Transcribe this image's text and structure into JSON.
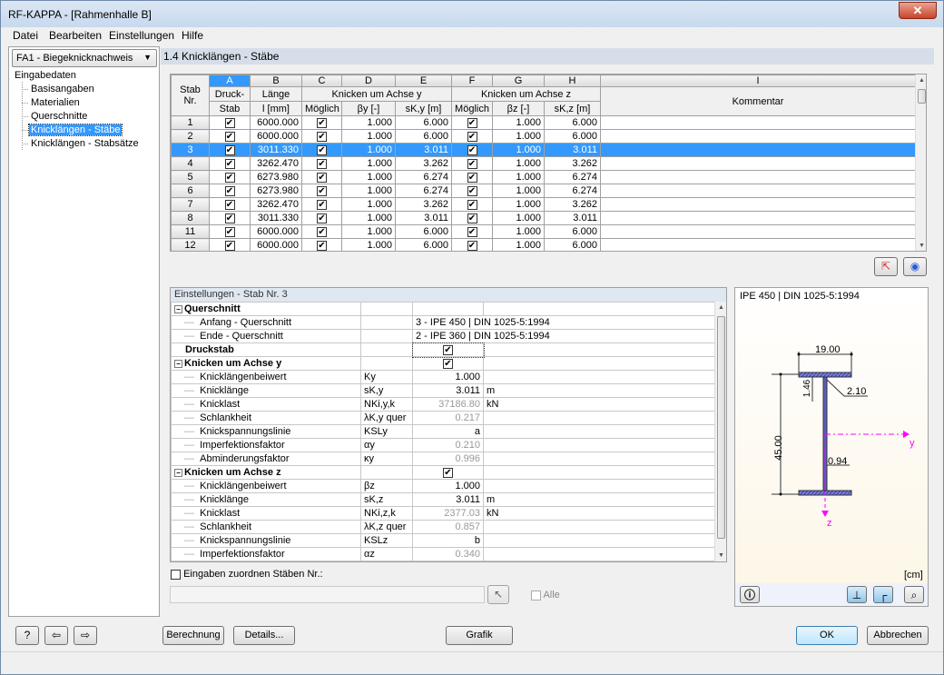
{
  "window": {
    "title": "RF-KAPPA - [Rahmenhalle B]",
    "close": "✕"
  },
  "menu": [
    "Datei",
    "Bearbeiten",
    "Einstellungen",
    "Hilfe"
  ],
  "left": {
    "case": "FA1 - Biegeknicknachweis",
    "root": "Eingabedaten",
    "items": [
      "Basisangaben",
      "Materialien",
      "Querschnitte",
      "Knicklängen - Stäbe",
      "Knicklängen - Stabsätze"
    ],
    "selected": 3
  },
  "section_title": "1.4 Knicklängen - Stäbe",
  "grid": {
    "letters": [
      "A",
      "B",
      "C",
      "D",
      "E",
      "F",
      "G",
      "H",
      "I"
    ],
    "headers": {
      "stab": "Stab",
      "nr": "Nr.",
      "druck1": "Druck-",
      "druck2": "Stab",
      "laenge1": "Länge",
      "laenge2": "l [mm]",
      "achse_y": "Knicken um Achse y",
      "achse_z": "Knicken um Achse z",
      "moeglich": "Möglich",
      "beta_y": "βy [-]",
      "sk_y": "sK,y [m]",
      "beta_z": "βz [-]",
      "sk_z": "sK,z [m]",
      "kommentar": "Kommentar"
    },
    "rows": [
      {
        "nr": "1",
        "druck": true,
        "l": "6000.000",
        "my": true,
        "by": "1.000",
        "sky": "6.000",
        "mz": true,
        "bz": "1.000",
        "skz": "6.000"
      },
      {
        "nr": "2",
        "druck": true,
        "l": "6000.000",
        "my": true,
        "by": "1.000",
        "sky": "6.000",
        "mz": true,
        "bz": "1.000",
        "skz": "6.000"
      },
      {
        "nr": "3",
        "druck": true,
        "l": "3011.330",
        "my": true,
        "by": "1.000",
        "sky": "3.011",
        "mz": true,
        "bz": "1.000",
        "skz": "3.011"
      },
      {
        "nr": "4",
        "druck": true,
        "l": "3262.470",
        "my": true,
        "by": "1.000",
        "sky": "3.262",
        "mz": true,
        "bz": "1.000",
        "skz": "3.262"
      },
      {
        "nr": "5",
        "druck": true,
        "l": "6273.980",
        "my": true,
        "by": "1.000",
        "sky": "6.274",
        "mz": true,
        "bz": "1.000",
        "skz": "6.274"
      },
      {
        "nr": "6",
        "druck": true,
        "l": "6273.980",
        "my": true,
        "by": "1.000",
        "sky": "6.274",
        "mz": true,
        "bz": "1.000",
        "skz": "6.274"
      },
      {
        "nr": "7",
        "druck": true,
        "l": "3262.470",
        "my": true,
        "by": "1.000",
        "sky": "3.262",
        "mz": true,
        "bz": "1.000",
        "skz": "3.262"
      },
      {
        "nr": "8",
        "druck": true,
        "l": "3011.330",
        "my": true,
        "by": "1.000",
        "sky": "3.011",
        "mz": true,
        "bz": "1.000",
        "skz": "3.011"
      },
      {
        "nr": "11",
        "druck": true,
        "l": "6000.000",
        "my": true,
        "by": "1.000",
        "sky": "6.000",
        "mz": true,
        "bz": "1.000",
        "skz": "6.000"
      },
      {
        "nr": "12",
        "druck": true,
        "l": "6000.000",
        "my": true,
        "by": "1.000",
        "sky": "6.000",
        "mz": true,
        "bz": "1.000",
        "skz": "6.000"
      }
    ],
    "selected_row": "3"
  },
  "settings": {
    "title": "Einstellungen  -  Stab Nr.  3",
    "rows": [
      {
        "type": "group",
        "name": "Querschnitt"
      },
      {
        "type": "item",
        "name": "Anfang - Querschnitt",
        "sym": "",
        "val": "3 - IPE 450 | DIN 1025-5:1994",
        "unit": "",
        "left": true
      },
      {
        "type": "item",
        "name": "Ende - Querschnitt",
        "sym": "",
        "val": "2 - IPE 360 | DIN 1025-5:1994",
        "unit": "",
        "left": true
      },
      {
        "type": "bold",
        "name": "Druckstab",
        "check": true
      },
      {
        "type": "group",
        "name": "Knicken um Achse y",
        "check": true
      },
      {
        "type": "item",
        "name": "Knicklängenbeiwert",
        "sym": "Ky",
        "val": "1.000",
        "unit": ""
      },
      {
        "type": "item",
        "name": "Knicklänge",
        "sym": "sK,y",
        "val": "3.011",
        "unit": "m"
      },
      {
        "type": "item",
        "name": "Knicklast",
        "sym": "NKi,y,k",
        "val": "37186.80",
        "unit": "kN",
        "gray": true
      },
      {
        "type": "item",
        "name": "Schlankheit",
        "sym": "λK,y quer",
        "val": "0.217",
        "unit": "",
        "gray": true
      },
      {
        "type": "item",
        "name": "Knickspannungslinie",
        "sym": "KSLy",
        "val": "a",
        "unit": ""
      },
      {
        "type": "item",
        "name": "Imperfektionsfaktor",
        "sym": "αy",
        "val": "0.210",
        "unit": "",
        "gray": true
      },
      {
        "type": "item",
        "name": "Abminderungsfaktor",
        "sym": "κy",
        "val": "0.996",
        "unit": "",
        "gray": true
      },
      {
        "type": "group",
        "name": "Knicken um Achse z",
        "check": true
      },
      {
        "type": "item",
        "name": "Knicklängenbeiwert",
        "sym": "βz",
        "val": "1.000",
        "unit": ""
      },
      {
        "type": "item",
        "name": "Knicklänge",
        "sym": "sK,z",
        "val": "3.011",
        "unit": "m"
      },
      {
        "type": "item",
        "name": "Knicklast",
        "sym": "NKi,z,k",
        "val": "2377.03",
        "unit": "kN",
        "gray": true
      },
      {
        "type": "item",
        "name": "Schlankheit",
        "sym": "λK,z quer",
        "val": "0.857",
        "unit": "",
        "gray": true
      },
      {
        "type": "item",
        "name": "Knickspannungslinie",
        "sym": "KSLz",
        "val": "b",
        "unit": ""
      },
      {
        "type": "item",
        "name": "Imperfektionsfaktor",
        "sym": "αz",
        "val": "0.340",
        "unit": "",
        "gray": true
      }
    ],
    "assign_label": "Eingaben zuordnen Stäben Nr.:",
    "assign_value": "",
    "alle": "Alle"
  },
  "graphic": {
    "title": "IPE 450 | DIN 1025-5:1994",
    "b": "19.00",
    "h": "45.00",
    "tf": "1.46",
    "r": "2.10",
    "tw": "0.94",
    "axis_y": "y",
    "axis_z": "z",
    "unit": "[cm]"
  },
  "buttons": {
    "berechnung": "Berechnung",
    "details": "Details...",
    "grafik": "Grafik",
    "ok": "OK",
    "abbrechen": "Abbrechen"
  },
  "colors": {
    "selection": "#3399ff",
    "profile": "#7b7fe0",
    "axis": "#ff00ff"
  }
}
